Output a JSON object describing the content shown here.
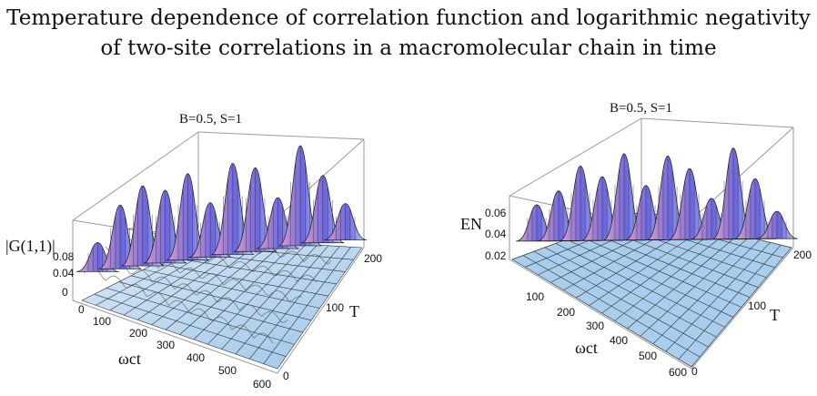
{
  "title_line1": "Temperature dependence of correlation function and logarithmic negativity",
  "title_line2": "of two-site correlations in a macromolecular chain in time",
  "plots": [
    {
      "name": "correlation-function",
      "label": "B=0.5, S=1",
      "z_label": "|G(1,1)|",
      "z_ticks": [
        "0.08",
        "0.04",
        "0"
      ],
      "x_label": "ωct",
      "x_ticks": [
        "0",
        "100",
        "200",
        "300",
        "400",
        "500",
        "600"
      ],
      "y_label": "T",
      "y_ticks": [
        "0",
        "100",
        "200"
      ]
    },
    {
      "name": "logarithmic-negativity",
      "label": "B=0.5, S=1",
      "z_label": "EN",
      "z_ticks": [
        "0.06",
        "0.04",
        "0.02"
      ],
      "x_label": "ωct",
      "x_ticks": [
        "100",
        "200",
        "300",
        "400",
        "500",
        "600"
      ],
      "y_label": "T",
      "y_ticks": [
        "0",
        "100",
        "200"
      ]
    }
  ],
  "colors": {
    "surface_high_a": "#6a66e0",
    "surface_high_b": "#e6a2c4",
    "surface_low": "#bfd8ef",
    "floor": "#a9cdec",
    "mesh": "#1a1a1a"
  }
}
